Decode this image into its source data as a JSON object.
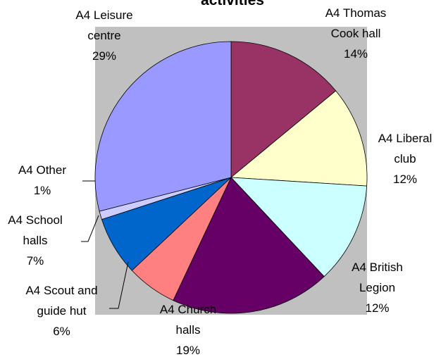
{
  "chart_data": {
    "type": "pie",
    "title": "activities",
    "categories": [
      "A4 Thomas Cook hall",
      "A4 Liberal club",
      "A4 British Legion",
      "A4 Church halls",
      "A4 Scout and guide hut",
      "A4 School halls",
      "A4 Other",
      "A4 Leisure centre"
    ],
    "values": [
      14,
      12,
      12,
      19,
      6,
      7,
      1,
      29
    ],
    "value_labels": [
      "14%",
      "12%",
      "12%",
      "19%",
      "6%",
      "7%",
      "1%",
      "29%"
    ],
    "colors": [
      "#993366",
      "#ffffcc",
      "#ccffff",
      "#660066",
      "#ff8080",
      "#0066cc",
      "#ccccff",
      "#9999ff"
    ]
  }
}
